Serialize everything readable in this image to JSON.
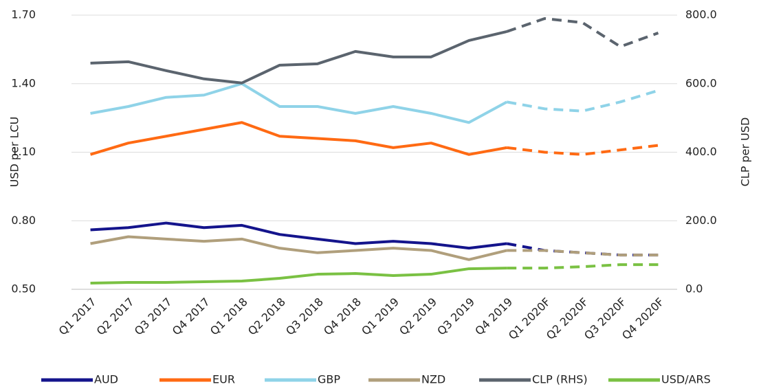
{
  "chart_data": {
    "type": "line",
    "categories": [
      "Q1 2017",
      "Q2 2017",
      "Q3 2017",
      "Q4 2017",
      "Q1 2018",
      "Q2 2018",
      "Q3 2018",
      "Q4 2018",
      "Q1 2019",
      "Q2 2019",
      "Q3 2019",
      "Q4 2019",
      "Q1 2020F",
      "Q2 2020F",
      "Q3 2020F",
      "Q4 2020F"
    ],
    "series": [
      {
        "name": "AUD",
        "color": "#14148c",
        "values": [
          0.76,
          0.77,
          0.79,
          0.77,
          0.78,
          0.74,
          0.72,
          0.7,
          0.71,
          0.7,
          0.68,
          0.7,
          0.67,
          0.66,
          0.65,
          0.65
        ]
      },
      {
        "name": "EUR",
        "color": "#ff6a13",
        "values": [
          1.09,
          1.14,
          1.17,
          1.2,
          1.23,
          1.17,
          1.16,
          1.15,
          1.12,
          1.14,
          1.09,
          1.12,
          1.1,
          1.09,
          1.11,
          1.13
        ]
      },
      {
        "name": "GBP",
        "color": "#8fd3e8",
        "values": [
          1.27,
          1.3,
          1.34,
          1.35,
          1.4,
          1.3,
          1.3,
          1.27,
          1.3,
          1.27,
          1.23,
          1.32,
          1.29,
          1.28,
          1.32,
          1.37
        ]
      },
      {
        "name": "NZD",
        "color": "#b09f7c",
        "values": [
          0.7,
          0.73,
          0.72,
          0.71,
          0.72,
          0.68,
          0.66,
          0.67,
          0.68,
          0.67,
          0.63,
          0.67,
          0.67,
          0.66,
          0.65,
          0.65
        ]
      },
      {
        "name": "CLP (RHS)",
        "color": "#5b646e",
        "axis": "y2",
        "values": [
          660,
          664,
          638,
          614,
          602,
          654,
          658,
          694,
          678,
          678,
          726,
          752,
          790,
          778,
          708,
          748
        ]
      },
      {
        "name": "USD/ARS",
        "color": "#7ac143",
        "axis": "y2",
        "values": [
          18,
          20,
          20,
          22,
          24,
          32,
          44,
          46,
          40,
          44,
          60,
          62,
          62,
          66,
          72,
          72
        ]
      }
    ],
    "y_label": "USD per LCU",
    "y2_label": "CLP per USD",
    "ylim": [
      0.5,
      1.7
    ],
    "yticks": [
      {
        "value": 0.5,
        "label": "0.50"
      },
      {
        "value": 0.8,
        "label": "0.80"
      },
      {
        "value": 1.1,
        "label": "1.10"
      },
      {
        "value": 1.4,
        "label": "1.40"
      },
      {
        "value": 1.7,
        "label": "1.70"
      }
    ],
    "y2lim": [
      0,
      800
    ],
    "y2ticks": [
      {
        "value": 0,
        "label": "0.0"
      },
      {
        "value": 200,
        "label": "200.0"
      },
      {
        "value": 400,
        "label": "400.0"
      },
      {
        "value": 600,
        "label": "600.0"
      },
      {
        "value": 800,
        "label": "800.0"
      }
    ],
    "grid": true,
    "legend": "bottom"
  }
}
